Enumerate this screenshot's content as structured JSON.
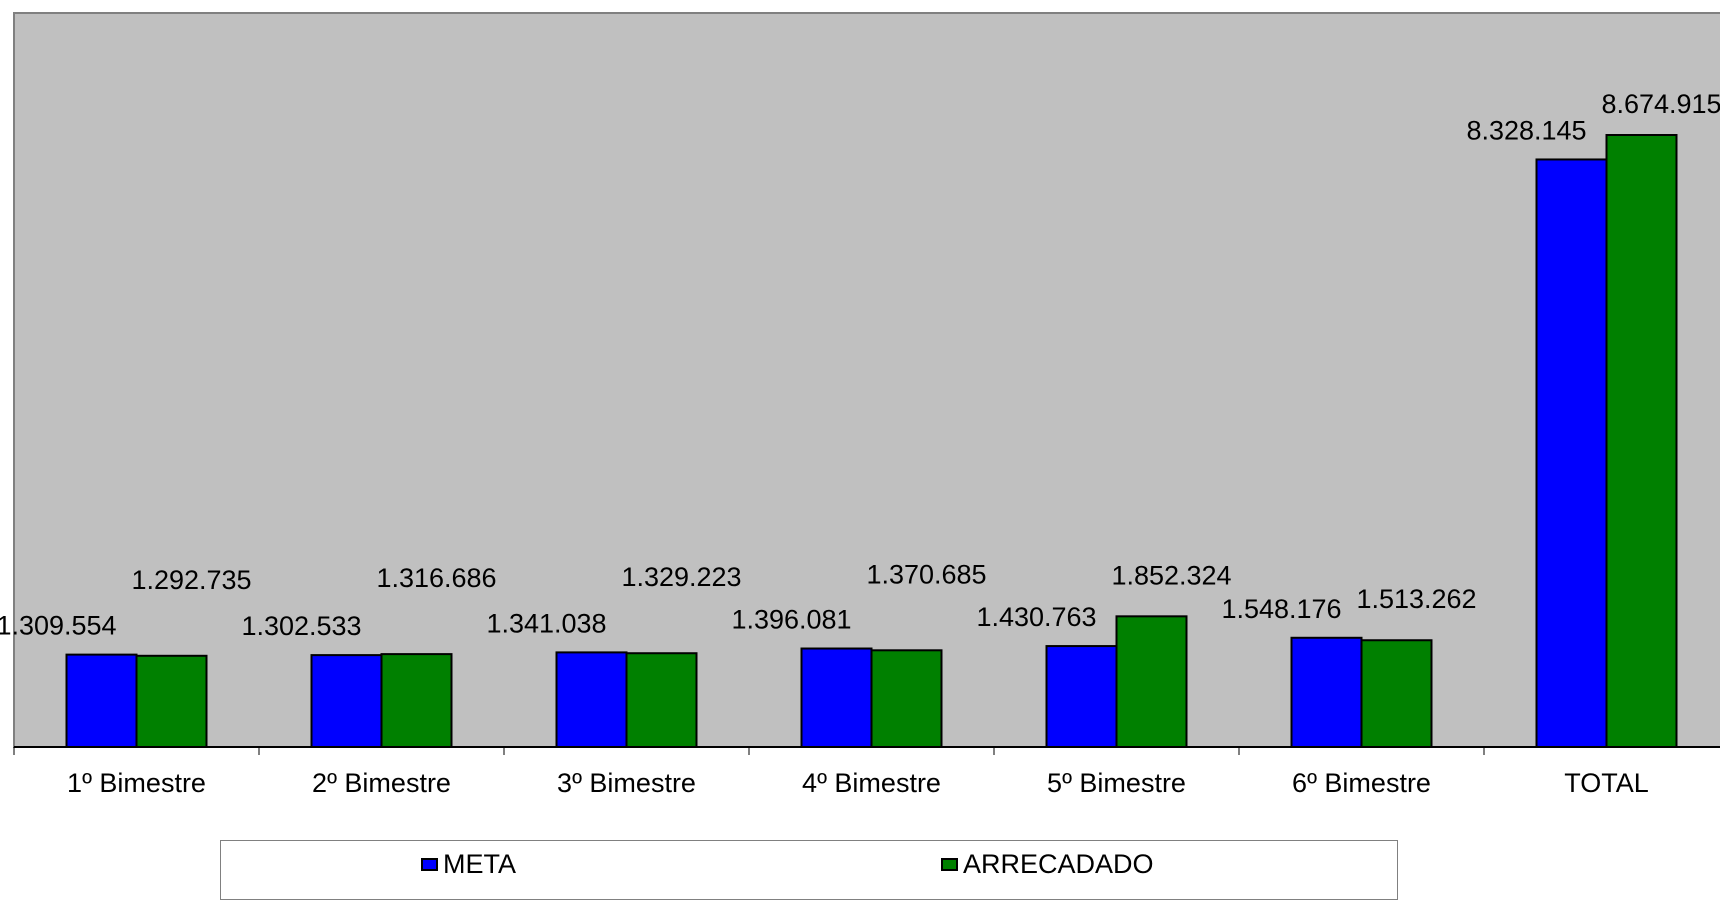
{
  "chart_data": {
    "type": "bar",
    "categories": [
      "1º Bimestre",
      "2º Bimestre",
      "3º Bimestre",
      "4º Bimestre",
      "5º Bimestre",
      "6º Bimestre",
      "TOTAL"
    ],
    "series": [
      {
        "name": "META",
        "color": "#0000ff",
        "values": [
          1309554,
          1302533,
          1341038,
          1396081,
          1430763,
          1548176,
          8328145
        ],
        "labels": [
          "1.309.554",
          "1.302.533",
          "1.341.038",
          "1.396.081",
          "1.430.763",
          "1.548.176",
          "8.328.145"
        ]
      },
      {
        "name": "ARRECADADO",
        "color": "#008000",
        "values": [
          1292735,
          1316686,
          1329223,
          1370685,
          1852324,
          1513262,
          8674915
        ],
        "labels": [
          "1.292.735",
          "1.316.686",
          "1.329.223",
          "1.370.685",
          "1.852.324",
          "1.513.262",
          "8.674.915"
        ]
      }
    ],
    "ylim": [
      0,
      10000000
    ],
    "plot_background": "#c0c0c0",
    "legend_position": "bottom",
    "grid": false
  }
}
